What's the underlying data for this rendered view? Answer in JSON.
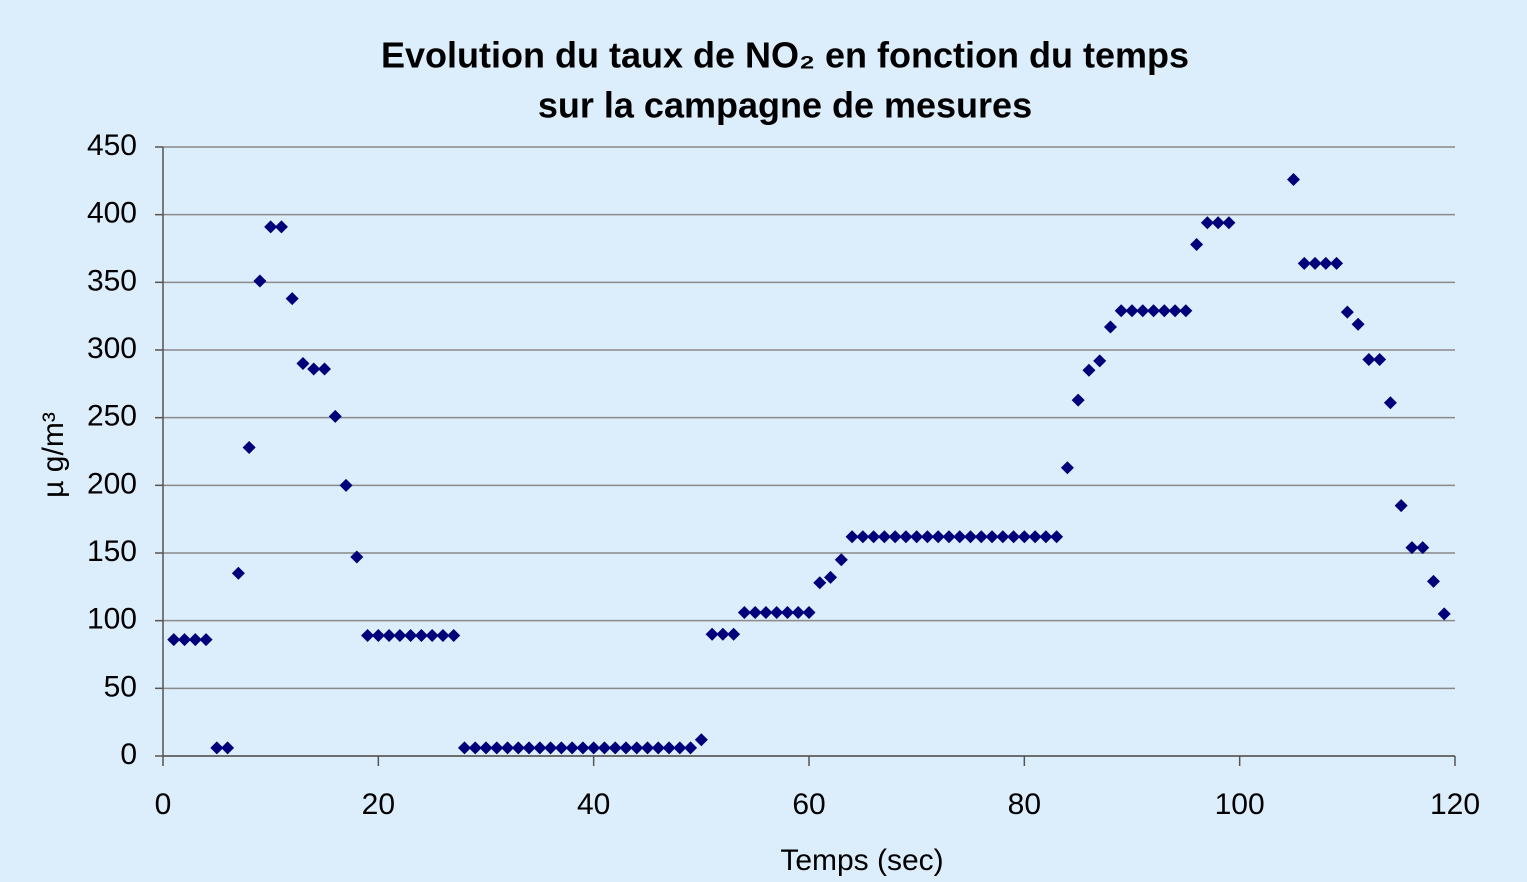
{
  "chart_data": {
    "type": "scatter",
    "title": "Evolution du taux de NO₂ en fonction du temps",
    "subtitle": "sur la campagne de mesures",
    "xlabel": "Temps (sec)",
    "ylabel": "µ g/m³",
    "color": "#00007a",
    "grid": true,
    "xlim": [
      0,
      120
    ],
    "xticks": [
      0,
      20,
      40,
      60,
      80,
      100,
      120
    ],
    "ylim": [
      0,
      450
    ],
    "yticks": [
      0,
      50,
      100,
      150,
      200,
      250,
      300,
      350,
      400,
      450
    ],
    "x": [
      1,
      2,
      3,
      4,
      5,
      6,
      7,
      8,
      9,
      10,
      11,
      12,
      13,
      14,
      15,
      16,
      17,
      18,
      19,
      20,
      21,
      22,
      23,
      24,
      25,
      26,
      27,
      28,
      29,
      30,
      31,
      32,
      33,
      34,
      35,
      36,
      37,
      38,
      39,
      40,
      41,
      42,
      43,
      44,
      45,
      46,
      47,
      48,
      49,
      50,
      51,
      52,
      53,
      54,
      55,
      56,
      57,
      58,
      59,
      60,
      61,
      62,
      63,
      64,
      65,
      66,
      67,
      68,
      69,
      70,
      71,
      72,
      73,
      74,
      75,
      76,
      77,
      78,
      79,
      80,
      81,
      82,
      83,
      84,
      85,
      86,
      87,
      88,
      89,
      90,
      91,
      92,
      93,
      94,
      95,
      96,
      97,
      98,
      99,
      105,
      106,
      107,
      108,
      109,
      110,
      111,
      112,
      113,
      114,
      115,
      116,
      117,
      118,
      119
    ],
    "values": [
      86,
      86,
      86,
      86,
      6,
      6,
      135,
      228,
      351,
      391,
      391,
      338,
      290,
      286,
      286,
      251,
      200,
      147,
      89,
      89,
      89,
      89,
      89,
      89,
      89,
      89,
      89,
      6,
      6,
      6,
      6,
      6,
      6,
      6,
      6,
      6,
      6,
      6,
      6,
      6,
      6,
      6,
      6,
      6,
      6,
      6,
      6,
      6,
      6,
      12,
      90,
      90,
      90,
      106,
      106,
      106,
      106,
      106,
      106,
      106,
      128,
      132,
      145,
      162,
      162,
      162,
      162,
      162,
      162,
      162,
      162,
      162,
      162,
      162,
      162,
      162,
      162,
      162,
      162,
      162,
      162,
      162,
      162,
      213,
      263,
      285,
      292,
      317,
      329,
      329,
      329,
      329,
      329,
      329,
      329,
      378,
      394,
      394,
      394,
      426,
      364,
      364,
      364,
      364,
      328,
      319,
      293,
      293,
      261,
      185,
      154,
      154,
      129,
      105
    ]
  }
}
